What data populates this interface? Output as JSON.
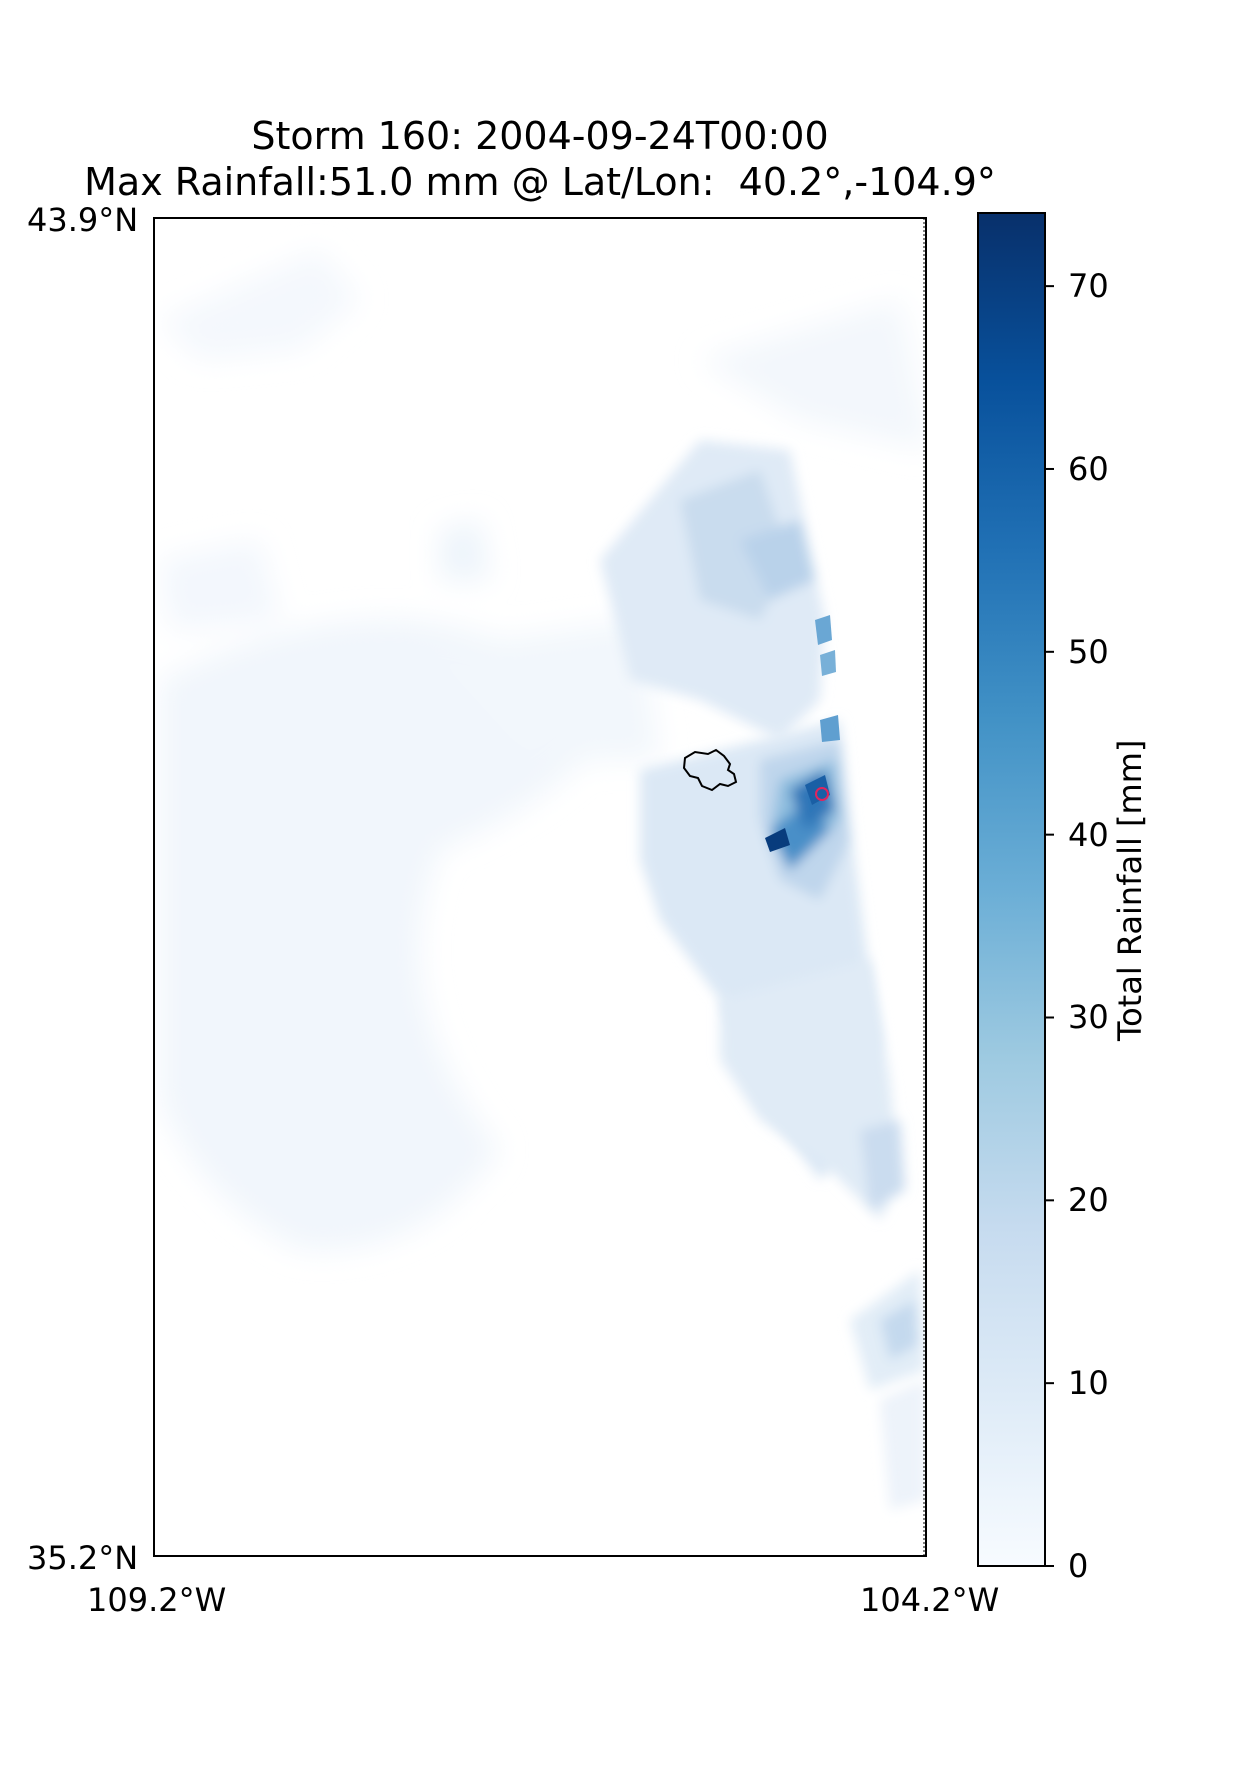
{
  "title": {
    "line1": "Storm 160: 2004-09-24T00:00",
    "line2": "Max Rainfall:51.0 mm @ Lat/Lon:  40.2°,-104.9°"
  },
  "map": {
    "lat_top": "43.9°N",
    "lat_bottom": "35.2°N",
    "lon_left": "109.2°W",
    "lon_right": "104.2°W",
    "extent": {
      "lon_min": -109.2,
      "lon_max": -104.2,
      "lat_min": 35.2,
      "lat_max": 43.9
    },
    "max_point": {
      "lat": 40.2,
      "lon": -104.9,
      "value_mm": 51.0
    },
    "colormap": "Blues",
    "watershed_outline": true
  },
  "colorbar": {
    "label": "Total Rainfall [mm]",
    "vmin": 0,
    "vmax": 74,
    "ticks": [
      "0",
      "10",
      "20",
      "30",
      "40",
      "50",
      "60",
      "70"
    ],
    "tick_values": [
      0,
      10,
      20,
      30,
      40,
      50,
      60,
      70
    ],
    "colors": [
      "#f7fbff",
      "#deebf7",
      "#c6dbef",
      "#9ecae1",
      "#6baed6",
      "#4292c6",
      "#2171b5",
      "#08519c",
      "#08306b"
    ]
  }
}
